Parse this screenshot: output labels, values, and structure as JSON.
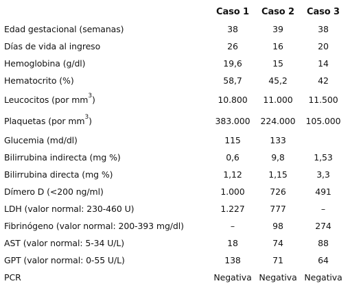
{
  "header": {
    "label": "",
    "cols": [
      "Caso 1",
      "Caso 2",
      "Caso 3"
    ]
  },
  "rows": [
    {
      "label": "Edad gestacional (semanas)",
      "values": [
        "38",
        "39",
        "38"
      ]
    },
    {
      "label": "Días de vida al ingreso",
      "values": [
        "26",
        "16",
        "20"
      ]
    },
    {
      "label": "Hemoglobina (g/dl)",
      "values": [
        "19,6",
        "15",
        "14"
      ]
    },
    {
      "label": "Hematocrito (%)",
      "values": [
        "58,7",
        "45,2",
        "42"
      ]
    },
    {
      "label": "Leucocitos (por mm",
      "sup": "3",
      "label_end": ")",
      "values": [
        "10.800",
        "11.000",
        "11.500"
      ]
    },
    {
      "label": "Plaquetas (por mm",
      "sup": "3",
      "label_end": ")",
      "values": [
        "383.000",
        "224.000",
        "105.000"
      ]
    },
    {
      "label": "Glucemia (md/dl)",
      "values": [
        "115",
        "133",
        ""
      ]
    },
    {
      "label": "Bilirrubina indirecta (mg %)",
      "values": [
        "0,6",
        "9,8",
        "1,53"
      ]
    },
    {
      "label": "Bilirrubina directa (mg %)",
      "values": [
        "1,12",
        "1,15",
        "3,3"
      ]
    },
    {
      "label": "Dímero D (<200 ng/ml)",
      "values": [
        "1.000",
        "726",
        "491"
      ]
    },
    {
      "label": "LDH (valor normal: 230-460 U)",
      "values": [
        "1.227",
        "777",
        "–"
      ]
    },
    {
      "label": "Fibrinógeno (valor normal: 200-393 mg/dl)",
      "values": [
        "–",
        "98",
        "274"
      ]
    },
    {
      "label": "AST (valor normal: 5-34 U/L)",
      "values": [
        "18",
        "74",
        "88"
      ]
    },
    {
      "label": "GPT (valor normal: 0-55 U/L)",
      "values": [
        "138",
        "71",
        "64"
      ]
    },
    {
      "label": "PCR",
      "values": [
        "Negativa",
        "Negativa",
        "Negativa"
      ]
    }
  ]
}
